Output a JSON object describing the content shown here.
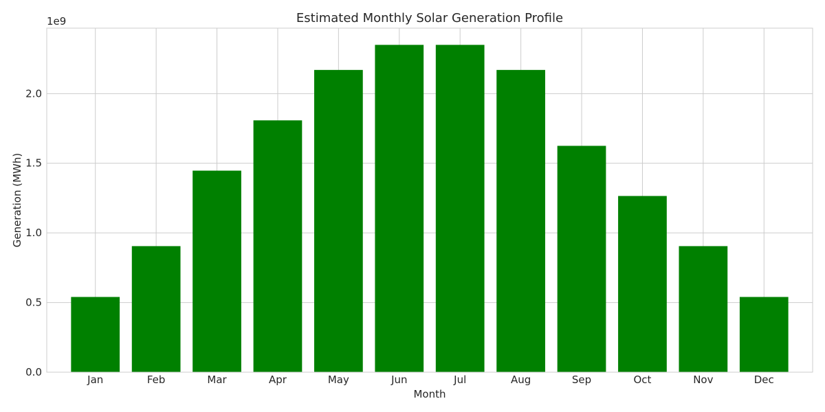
{
  "chart_data": {
    "type": "bar",
    "title": "Estimated Monthly Solar Generation Profile",
    "xlabel": "Month",
    "ylabel": "Generation (MWh)",
    "offset_text": "1e9",
    "categories": [
      "Jan",
      "Feb",
      "Mar",
      "Apr",
      "May",
      "Jun",
      "Jul",
      "Aug",
      "Sep",
      "Oct",
      "Nov",
      "Dec"
    ],
    "values": [
      540000000,
      905000000,
      1447000000,
      1808000000,
      2170000000,
      2350000000,
      2350000000,
      2170000000,
      1625000000,
      1265000000,
      905000000,
      540000000
    ],
    "yticks": [
      0,
      500000000,
      1000000000,
      1500000000,
      2000000000
    ],
    "ytick_labels": [
      "0.0",
      "0.5",
      "1.0",
      "1.5",
      "2.0"
    ],
    "ylim": [
      0,
      2470000000
    ],
    "grid": true,
    "bar_color": "#008000"
  }
}
